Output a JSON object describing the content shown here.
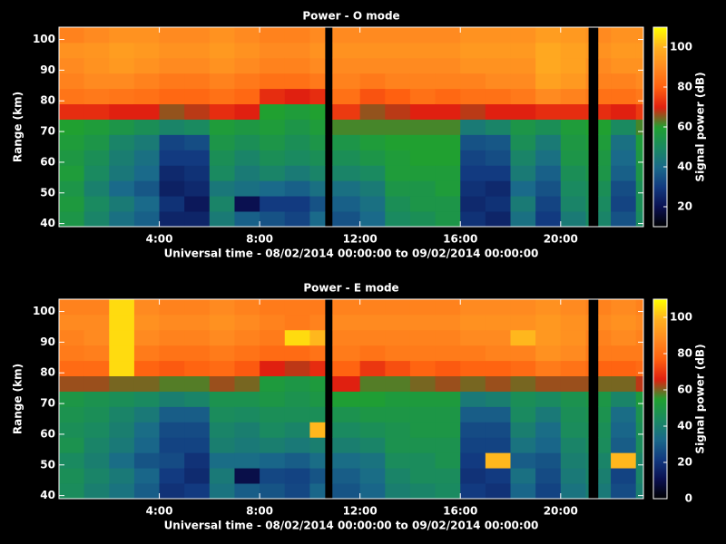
{
  "chart_data": [
    {
      "type": "heatmap",
      "title": "Power - O mode",
      "x_label": "Universal time - 08/02/2014 00:00:00 to 09/02/2014 00:00:00",
      "y_label": "Range (km)",
      "colorbar_label": "Signal power (dB)",
      "x_edges": [
        0,
        1,
        2,
        3,
        4,
        5,
        6,
        7,
        8,
        9,
        10,
        10.6,
        10.9,
        12,
        13,
        14,
        15,
        16,
        17,
        18,
        19,
        20,
        21,
        21.1,
        21.5,
        22,
        23,
        23.3
      ],
      "y_edges": [
        39,
        44,
        49,
        54,
        59,
        64,
        69,
        74,
        79,
        84,
        89,
        94,
        99,
        104
      ],
      "values": [
        [
          55,
          57,
          55,
          58,
          56,
          58,
          60,
          72,
          85,
          88,
          90,
          92,
          88
        ],
        [
          48,
          50,
          47,
          50,
          52,
          55,
          58,
          72,
          86,
          90,
          92,
          93,
          90
        ],
        [
          42,
          45,
          40,
          44,
          46,
          48,
          55,
          70,
          85,
          90,
          94,
          95,
          92
        ],
        [
          38,
          40,
          36,
          40,
          42,
          45,
          52,
          70,
          84,
          88,
          92,
          94,
          92
        ],
        [
          25,
          28,
          24,
          26,
          30,
          32,
          48,
          66,
          82,
          86,
          90,
          92,
          90
        ],
        [
          25,
          22,
          26,
          28,
          30,
          34,
          50,
          68,
          82,
          86,
          90,
          92,
          90
        ],
        [
          45,
          48,
          44,
          50,
          52,
          55,
          58,
          72,
          84,
          88,
          92,
          94,
          92
        ],
        [
          38,
          20,
          42,
          45,
          48,
          52,
          56,
          70,
          82,
          86,
          90,
          92,
          90
        ],
        [
          35,
          30,
          40,
          48,
          52,
          55,
          58,
          60,
          72,
          84,
          88,
          90,
          88
        ],
        [
          32,
          30,
          38,
          45,
          50,
          52,
          55,
          58,
          70,
          84,
          88,
          90,
          88
        ],
        [
          40,
          35,
          42,
          48,
          52,
          55,
          58,
          60,
          72,
          86,
          90,
          92,
          90
        ],
        null,
        [
          35,
          38,
          42,
          48,
          52,
          55,
          62,
          74,
          84,
          88,
          90,
          92,
          90
        ],
        [
          40,
          42,
          45,
          50,
          55,
          58,
          62,
          66,
          78,
          86,
          90,
          92,
          90
        ],
        [
          50,
          52,
          55,
          58,
          58,
          60,
          62,
          68,
          80,
          88,
          90,
          92,
          90
        ],
        [
          52,
          55,
          55,
          58,
          60,
          60,
          62,
          70,
          84,
          88,
          90,
          92,
          90
        ],
        [
          55,
          55,
          58,
          58,
          60,
          60,
          62,
          70,
          82,
          88,
          90,
          92,
          90
        ],
        [
          28,
          26,
          28,
          30,
          32,
          35,
          45,
          68,
          84,
          88,
          92,
          94,
          92
        ],
        [
          25,
          28,
          26,
          30,
          34,
          36,
          48,
          70,
          84,
          90,
          92,
          94,
          92
        ],
        [
          42,
          45,
          40,
          45,
          48,
          52,
          55,
          70,
          86,
          90,
          92,
          94,
          92
        ],
        [
          30,
          32,
          35,
          38,
          42,
          45,
          52,
          72,
          90,
          96,
          98,
          98,
          95
        ],
        [
          45,
          48,
          50,
          52,
          55,
          56,
          58,
          72,
          88,
          94,
          96,
          96,
          94
        ],
        [
          50,
          52,
          52,
          55,
          56,
          58,
          60,
          72,
          86,
          90,
          92,
          94,
          92
        ],
        null,
        [
          48,
          50,
          52,
          55,
          56,
          58,
          60,
          72,
          84,
          88,
          90,
          92,
          90
        ],
        [
          35,
          32,
          34,
          38,
          40,
          42,
          50,
          70,
          84,
          88,
          92,
          94,
          92
        ],
        [
          50,
          52,
          52,
          55,
          56,
          58,
          62,
          74,
          86,
          90,
          92,
          94,
          92
        ]
      ],
      "xlim": [
        0,
        23.3
      ],
      "xticks": [
        {
          "value": 4,
          "label": "4:00"
        },
        {
          "value": 8,
          "label": "8:00"
        },
        {
          "value": 12,
          "label": "12:00"
        },
        {
          "value": 16,
          "label": "16:00"
        },
        {
          "value": 20,
          "label": "20:00"
        }
      ],
      "ylim": [
        39,
        104
      ],
      "yticks": [
        40,
        50,
        60,
        70,
        80,
        90,
        100
      ],
      "clim": [
        10,
        110
      ],
      "cticks": [
        20,
        40,
        60,
        80,
        100
      ],
      "colorscale": [
        "#000000",
        "#0a1050",
        "#123a80",
        "#1a6a8a",
        "#1a8a60",
        "#20a030",
        "#e02010",
        "#ff6010",
        "#ff8a20",
        "#ffb020",
        "#ffff00"
      ]
    },
    {
      "type": "heatmap",
      "title": "Power - E mode",
      "x_label": "Universal time - 08/02/2014 00:00:00 to 09/02/2014 00:00:00",
      "y_label": "Range (km)",
      "colorbar_label": "Signal power (dB)",
      "x_edges": [
        0,
        1,
        2,
        3,
        4,
        5,
        6,
        7,
        8,
        9,
        10,
        10.6,
        10.9,
        12,
        13,
        14,
        15,
        16,
        17,
        18,
        19,
        20,
        21,
        21.1,
        21.5,
        22,
        23,
        23.3
      ],
      "y_edges": [
        39,
        44,
        49,
        54,
        59,
        64,
        69,
        74,
        79,
        84,
        89,
        94,
        99,
        104
      ],
      "values": [
        [
          45,
          46,
          44,
          48,
          46,
          48,
          50,
          62,
          80,
          84,
          86,
          88,
          86
        ],
        [
          40,
          42,
          40,
          42,
          44,
          46,
          48,
          62,
          80,
          85,
          88,
          88,
          86
        ],
        [
          36,
          38,
          34,
          38,
          40,
          42,
          46,
          60,
          105,
          105,
          105,
          105,
          105
        ],
        [
          30,
          32,
          28,
          32,
          34,
          38,
          44,
          60,
          78,
          84,
          88,
          90,
          88
        ],
        [
          20,
          22,
          26,
          24,
          26,
          30,
          40,
          58,
          76,
          82,
          86,
          88,
          86
        ],
        [
          22,
          18,
          20,
          24,
          26,
          30,
          42,
          58,
          78,
          82,
          86,
          88,
          86
        ],
        [
          36,
          38,
          34,
          40,
          42,
          45,
          48,
          62,
          80,
          84,
          88,
          90,
          88
        ],
        [
          30,
          10,
          34,
          38,
          40,
          44,
          48,
          60,
          76,
          82,
          86,
          88,
          86
        ],
        [
          28,
          25,
          32,
          40,
          44,
          46,
          50,
          52,
          66,
          80,
          84,
          86,
          84
        ],
        [
          25,
          24,
          30,
          38,
          42,
          46,
          48,
          50,
          64,
          80,
          105,
          84,
          84
        ],
        [
          32,
          28,
          34,
          40,
          100,
          46,
          50,
          52,
          68,
          82,
          100,
          86,
          84
        ],
        null,
        [
          28,
          30,
          34,
          40,
          44,
          48,
          54,
          66,
          78,
          84,
          86,
          88,
          86
        ],
        [
          32,
          34,
          36,
          42,
          46,
          50,
          54,
          58,
          70,
          82,
          86,
          88,
          86
        ],
        [
          40,
          42,
          45,
          48,
          48,
          50,
          52,
          58,
          74,
          84,
          86,
          88,
          86
        ],
        [
          42,
          45,
          45,
          48,
          50,
          50,
          52,
          60,
          78,
          84,
          86,
          88,
          86
        ],
        [
          44,
          45,
          48,
          48,
          50,
          50,
          52,
          62,
          76,
          84,
          86,
          88,
          86
        ],
        [
          22,
          20,
          22,
          24,
          26,
          30,
          38,
          60,
          78,
          84,
          88,
          90,
          88
        ],
        [
          20,
          22,
          100,
          24,
          26,
          30,
          40,
          62,
          78,
          86,
          88,
          90,
          88
        ],
        [
          32,
          35,
          30,
          36,
          40,
          44,
          46,
          60,
          80,
          86,
          100,
          90,
          88
        ],
        [
          24,
          26,
          28,
          32,
          34,
          38,
          44,
          62,
          84,
          90,
          92,
          92,
          90
        ],
        [
          36,
          38,
          40,
          42,
          45,
          46,
          48,
          62,
          82,
          88,
          90,
          90,
          88
        ],
        [
          40,
          42,
          42,
          45,
          46,
          48,
          50,
          62,
          80,
          84,
          86,
          88,
          86
        ],
        null,
        [
          38,
          40,
          42,
          45,
          46,
          48,
          50,
          60,
          78,
          84,
          86,
          88,
          86
        ],
        [
          26,
          24,
          100,
          30,
          32,
          34,
          42,
          60,
          78,
          84,
          88,
          90,
          88
        ],
        [
          40,
          42,
          42,
          45,
          46,
          48,
          52,
          64,
          80,
          84,
          86,
          88,
          86
        ]
      ],
      "xlim": [
        0,
        23.3
      ],
      "xticks": [
        {
          "value": 4,
          "label": "4:00"
        },
        {
          "value": 8,
          "label": "8:00"
        },
        {
          "value": 12,
          "label": "12:00"
        },
        {
          "value": 16,
          "label": "16:00"
        },
        {
          "value": 20,
          "label": "20:00"
        }
      ],
      "ylim": [
        39,
        104
      ],
      "yticks": [
        40,
        50,
        60,
        70,
        80,
        90,
        100
      ],
      "clim": [
        0,
        110
      ],
      "cticks": [
        0,
        20,
        40,
        60,
        80,
        100
      ],
      "colorscale": [
        "#000000",
        "#0a1050",
        "#123a80",
        "#1a6a8a",
        "#1a8a60",
        "#20a030",
        "#e02010",
        "#ff6010",
        "#ff8a20",
        "#ffb020",
        "#ffff00"
      ]
    }
  ]
}
